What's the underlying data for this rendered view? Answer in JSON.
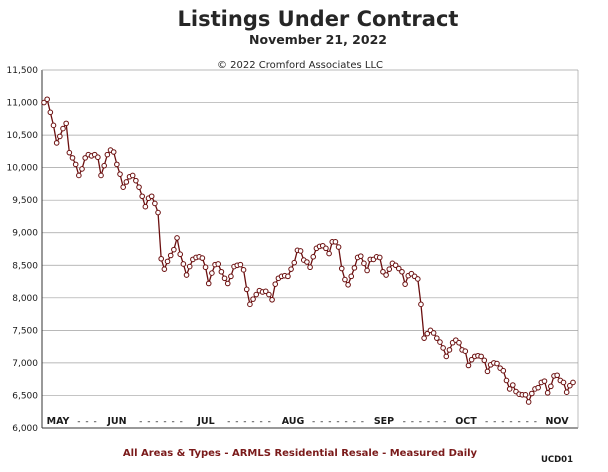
{
  "chart_data": {
    "type": "line",
    "title": "Listings Under Contract",
    "subtitle": "November 21, 2022",
    "copyright": "© 2022 Cromford Associates LLC",
    "footer": "All Areas & Types - ARMLS Residential Resale - Measured Daily",
    "code": "UCD01",
    "ylim": [
      6000,
      11500
    ],
    "y_ticks": [
      "11,500",
      "11,000",
      "10,500",
      "10,000",
      "9,500",
      "9,000",
      "8,500",
      "8,000",
      "7,500",
      "7,000",
      "6,500",
      "6,000"
    ],
    "x_labels": [
      "MAY",
      "JUN",
      "JUL",
      "AUG",
      "SEP",
      "OCT",
      "NOV"
    ],
    "grid": true,
    "colors": {
      "line": "#6b0f0f",
      "marker_fill": "#ffffff",
      "grid": "#a0a0a0",
      "footer": "#7a1a1a"
    },
    "series": [
      {
        "values": [
          11000,
          11050,
          10850,
          10650,
          10380,
          10480,
          10600,
          10680,
          10230,
          10150,
          10050,
          9880,
          9980,
          10150,
          10200,
          10180,
          10200,
          10160,
          9880,
          10030,
          10200,
          10270,
          10240,
          10050,
          9900,
          9700,
          9780,
          9860,
          9880,
          9800,
          9700,
          9560,
          9400,
          9530,
          9560,
          9450,
          9310,
          8600,
          8440,
          8560,
          8650,
          8740,
          8920,
          8670,
          8520,
          8350,
          8480,
          8590,
          8620,
          8630,
          8610,
          8470,
          8220,
          8380,
          8510,
          8520,
          8400,
          8300,
          8220,
          8330,
          8480,
          8500,
          8510,
          8430,
          8130,
          7900,
          7980,
          8050,
          8110,
          8090,
          8100,
          8050,
          7970,
          8210,
          8300,
          8330,
          8340,
          8330,
          8440,
          8540,
          8730,
          8720,
          8580,
          8550,
          8470,
          8630,
          8760,
          8790,
          8800,
          8760,
          8680,
          8860,
          8860,
          8780,
          8450,
          8280,
          8200,
          8330,
          8460,
          8620,
          8640,
          8530,
          8420,
          8590,
          8590,
          8630,
          8620,
          8400,
          8350,
          8440,
          8530,
          8500,
          8450,
          8400,
          8210,
          8340,
          8370,
          8330,
          8290,
          7900,
          7380,
          7450,
          7500,
          7460,
          7380,
          7320,
          7230,
          7100,
          7200,
          7310,
          7350,
          7310,
          7200,
          7180,
          6960,
          7050,
          7100,
          7110,
          7100,
          7040,
          6870,
          6970,
          7000,
          6990,
          6920,
          6880,
          6730,
          6600,
          6660,
          6560,
          6520,
          6510,
          6510,
          6400,
          6530,
          6600,
          6620,
          6700,
          6720,
          6540,
          6640,
          6800,
          6810,
          6730,
          6700,
          6550,
          6650,
          6700
        ]
      }
    ]
  }
}
